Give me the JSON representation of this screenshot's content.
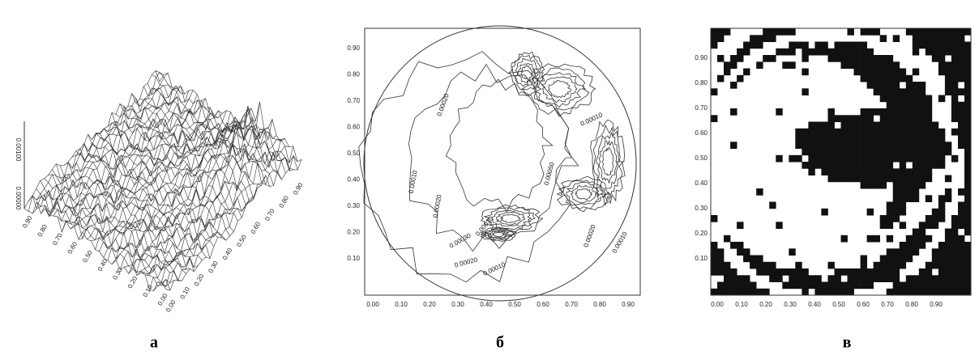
{
  "panels": [
    {
      "label": "а",
      "z_ticks": [
        "0.00100",
        "0.00000"
      ],
      "x_ticks": [
        "0.90",
        "0.80",
        "0.70",
        "0.60",
        "0.50",
        "0.40",
        "0.30",
        "0.20",
        "0.10",
        "0.00"
      ],
      "y_ticks": [
        "0.00",
        "0.10",
        "0.20",
        "0.30",
        "0.40",
        "0.50",
        "0.60",
        "0.70",
        "0.80",
        "0.90"
      ]
    },
    {
      "label": "б",
      "x_ticks": [
        "0.00",
        "0.10",
        "0.20",
        "0.30",
        "0.40",
        "0.50",
        "0.60",
        "0.70",
        "0.80",
        "0.90"
      ],
      "y_ticks": [
        "0.10",
        "0.20",
        "0.30",
        "0.40",
        "0.50",
        "0.60",
        "0.70",
        "0.80",
        "0.90"
      ],
      "contour_labels": [
        "0.00010",
        "0.00020",
        "0.00010",
        "0.00050",
        "0.00030",
        "0.00030",
        "0.00020",
        "0.00020",
        "0.00010",
        "0.00010",
        "0.00020"
      ]
    },
    {
      "label": "в",
      "x_ticks": [
        "0.00",
        "0.10",
        "0.20",
        "0.30",
        "0.40",
        "0.50",
        "0.60",
        "0.70",
        "0.80",
        "0.90"
      ],
      "y_ticks": [
        "0.10",
        "0.20",
        "0.30",
        "0.40",
        "0.50",
        "0.60",
        "0.70",
        "0.80",
        "0.90"
      ]
    }
  ]
}
